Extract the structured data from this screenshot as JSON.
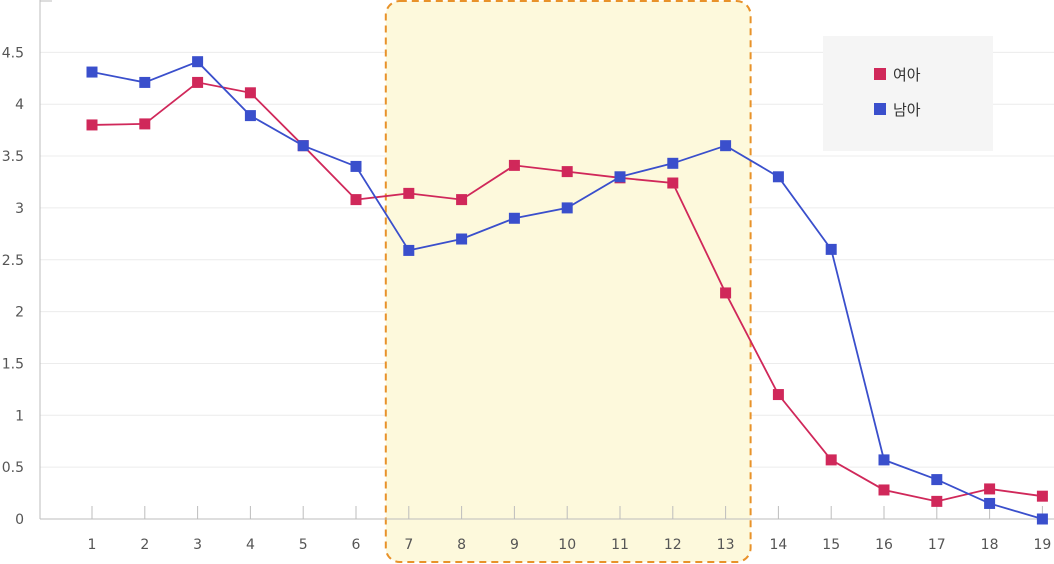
{
  "chart_data": {
    "type": "line",
    "title": "",
    "xlabel": "",
    "ylabel": "",
    "categories": [
      "1",
      "2",
      "3",
      "4",
      "5",
      "6",
      "7",
      "8",
      "9",
      "10",
      "11",
      "12",
      "13",
      "14",
      "15",
      "16",
      "17",
      "18",
      "19"
    ],
    "ylim": [
      0,
      4.5
    ],
    "yticks": [
      "0",
      "0.5",
      "1",
      "1.5",
      "2",
      "2.5",
      "3",
      "3.5",
      "4",
      "4.5"
    ],
    "grid": true,
    "legend_position": "top-right",
    "highlight_range": [
      "7",
      "13"
    ],
    "series": [
      {
        "name": "여아",
        "color": "#d0285a",
        "values": [
          3.8,
          3.81,
          4.21,
          4.11,
          3.6,
          3.08,
          3.14,
          3.08,
          3.41,
          3.35,
          3.29,
          3.24,
          2.18,
          1.2,
          0.57,
          0.28,
          0.17,
          0.29,
          0.22
        ]
      },
      {
        "name": "남아",
        "color": "#3a4fcc",
        "values": [
          4.31,
          4.21,
          4.41,
          3.89,
          3.6,
          3.4,
          2.59,
          2.7,
          2.9,
          3.0,
          3.3,
          3.43,
          3.6,
          3.3,
          2.6,
          0.57,
          0.38,
          0.15,
          0.0
        ]
      }
    ]
  }
}
